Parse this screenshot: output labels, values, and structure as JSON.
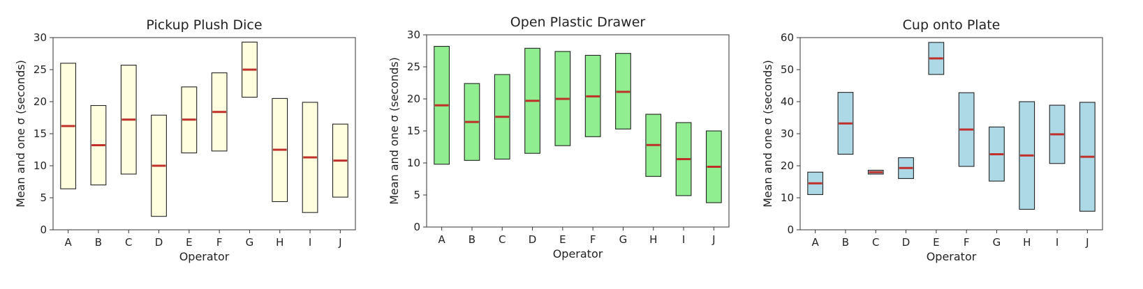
{
  "chart_data": [
    {
      "type": "bar",
      "title": "Pickup Plush Dice",
      "xlabel": "Operator",
      "ylabel": "Mean and one σ (seconds)",
      "ylim": [
        0,
        30
      ],
      "yticks": [
        0,
        5,
        10,
        15,
        20,
        25,
        30
      ],
      "categories": [
        "A",
        "B",
        "C",
        "D",
        "E",
        "F",
        "G",
        "H",
        "I",
        "J"
      ],
      "mean": [
        16.2,
        13.2,
        17.2,
        10.0,
        17.2,
        18.4,
        25.0,
        12.5,
        11.3,
        10.8
      ],
      "low": [
        6.4,
        7.0,
        8.7,
        2.1,
        12.0,
        12.3,
        20.7,
        4.4,
        2.7,
        5.1
      ],
      "high": [
        26.0,
        19.4,
        25.7,
        17.9,
        22.3,
        24.5,
        29.3,
        20.5,
        19.9,
        16.5
      ],
      "box_color": "#ffffe0",
      "mean_color": "#c0302b",
      "grid": false
    },
    {
      "type": "bar",
      "title": "Open Plastic Drawer",
      "xlabel": "Operator",
      "ylabel": "Mean and one σ (seconds)",
      "ylim": [
        0,
        30
      ],
      "yticks": [
        0,
        5,
        10,
        15,
        20,
        25,
        30
      ],
      "categories": [
        "A",
        "B",
        "C",
        "D",
        "E",
        "F",
        "G",
        "H",
        "I",
        "J"
      ],
      "mean": [
        19.0,
        16.4,
        17.2,
        19.7,
        20.0,
        20.4,
        21.1,
        12.8,
        10.6,
        9.4
      ],
      "low": [
        9.8,
        10.4,
        10.6,
        11.5,
        12.7,
        14.1,
        15.3,
        7.9,
        4.9,
        3.8
      ],
      "high": [
        28.2,
        22.4,
        23.8,
        27.9,
        27.4,
        26.8,
        27.1,
        17.6,
        16.3,
        15.0
      ],
      "box_color": "#90ee90",
      "mean_color": "#c0302b",
      "grid": false
    },
    {
      "type": "bar",
      "title": "Cup onto Plate",
      "xlabel": "Operator",
      "ylabel": "Mean and one σ (seconds)",
      "ylim": [
        0,
        60
      ],
      "yticks": [
        0,
        10,
        20,
        30,
        40,
        50,
        60
      ],
      "categories": [
        "A",
        "B",
        "C",
        "D",
        "E",
        "F",
        "G",
        "H",
        "I",
        "J"
      ],
      "mean": [
        14.5,
        33.2,
        18.0,
        19.3,
        53.5,
        31.3,
        23.6,
        23.2,
        29.8,
        22.8
      ],
      "low": [
        11.0,
        23.6,
        17.4,
        16.0,
        48.5,
        19.8,
        15.2,
        6.4,
        20.7,
        5.8
      ],
      "high": [
        18.0,
        42.9,
        18.6,
        22.5,
        58.5,
        42.8,
        32.1,
        40.0,
        38.9,
        39.8
      ],
      "box_color": "#add8e6",
      "mean_color": "#c0302b",
      "grid": false
    }
  ]
}
